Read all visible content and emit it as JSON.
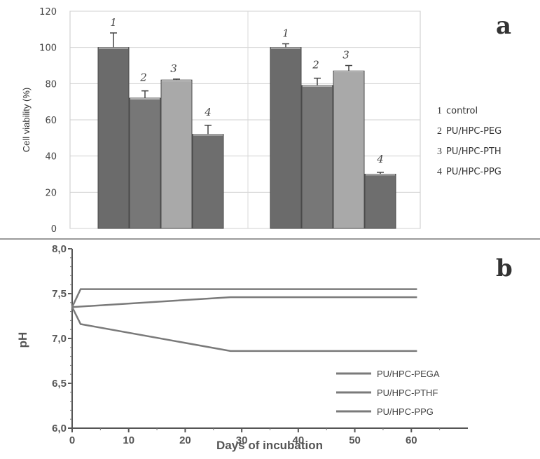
{
  "chart_data": [
    {
      "type": "bar",
      "panel_label": "a",
      "ylabel": "Cell viability (%)",
      "ylim": [
        0,
        120
      ],
      "yticks": [
        "0",
        "20",
        "40",
        "60",
        "80",
        "100",
        "120"
      ],
      "grid": true,
      "groups": [
        {
          "bars": [
            {
              "label": "1",
              "value": 100,
              "error": 8,
              "color": "#6b6b6b"
            },
            {
              "label": "2",
              "value": 72,
              "error": 4,
              "color": "#777777"
            },
            {
              "label": "3",
              "value": 82,
              "error": 0.5,
              "color": "#a9a9a9"
            },
            {
              "label": "4",
              "value": 52,
              "error": 5,
              "color": "#6e6e6e"
            }
          ]
        },
        {
          "bars": [
            {
              "label": "1",
              "value": 100,
              "error": 2,
              "color": "#6b6b6b"
            },
            {
              "label": "2",
              "value": 79,
              "error": 4,
              "color": "#777777"
            },
            {
              "label": "3",
              "value": 87,
              "error": 3,
              "color": "#a9a9a9"
            },
            {
              "label": "4",
              "value": 30,
              "error": 1,
              "color": "#6e6e6e"
            }
          ]
        }
      ],
      "legend": [
        {
          "num": "1",
          "text": "control"
        },
        {
          "num": "2",
          "text": "PU/HPC-PEG"
        },
        {
          "num": "3",
          "text": "PU/HPC-PTH"
        },
        {
          "num": "4",
          "text": "PU/HPC-PPG"
        }
      ]
    },
    {
      "type": "line",
      "panel_label": "b",
      "xlabel": "Days of incubation",
      "ylabel": "pH",
      "xlim": [
        0,
        70
      ],
      "ylim": [
        6.0,
        8.0
      ],
      "xticks": [
        "0",
        "10",
        "20",
        "30",
        "40",
        "50",
        "60"
      ],
      "yticks": [
        "6,0",
        "6,5",
        "7,0",
        "7,5",
        "8,0"
      ],
      "series": [
        {
          "name": "PU/HPC-PEGA",
          "color": "#7a7a7a",
          "points": [
            [
              0,
              7.35
            ],
            [
              1.5,
              7.16
            ],
            [
              28,
              6.86
            ],
            [
              61,
              6.86
            ]
          ]
        },
        {
          "name": "PU/HPC-PTHF",
          "color": "#7a7a7a",
          "points": [
            [
              0,
              7.35
            ],
            [
              28,
              7.46
            ],
            [
              61,
              7.46
            ]
          ]
        },
        {
          "name": "PU/HPC-PPG",
          "color": "#7a7a7a",
          "points": [
            [
              0,
              7.35
            ],
            [
              1.5,
              7.55
            ],
            [
              61,
              7.55
            ]
          ]
        }
      ]
    }
  ]
}
